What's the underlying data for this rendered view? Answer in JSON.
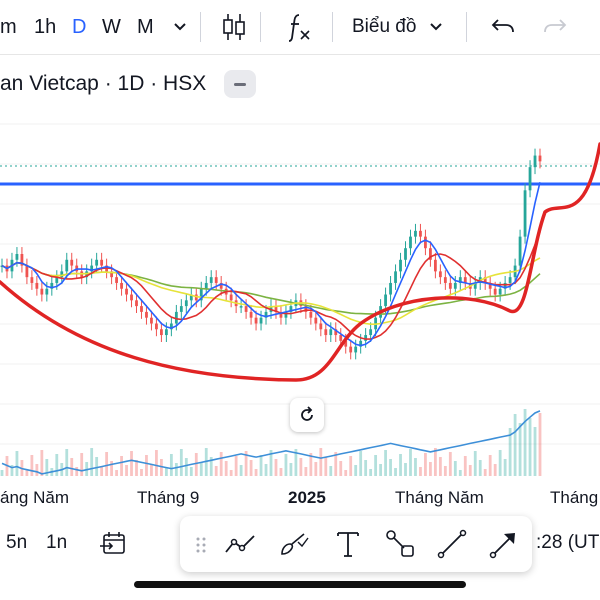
{
  "toolbar": {
    "intervals": [
      "m",
      "1h",
      "D",
      "W",
      "M"
    ],
    "active_interval": "D",
    "chevron_icon": "chevron-down-icon",
    "candles_icon": "candlestick-icon",
    "indicators_icon": "fx-icon",
    "chart_menu_label": "Biểu đồ",
    "undo_icon": "undo-icon",
    "redo_icon": "redo-icon"
  },
  "legend": {
    "symbol_text": "an Vietcap · 1D · HSX"
  },
  "colors": {
    "up": "#26a69a",
    "down": "#ef5350",
    "hline": "#2962ff",
    "ma_blue": "#2962ff",
    "ma_red": "#e03030",
    "ma_yellow": "#e6e33a",
    "ma_green": "#7cb342",
    "curve": "#e02424",
    "volume_line": "#3d8fd8",
    "dotted": "#26a69a",
    "active": "#2962ff"
  },
  "time_axis": [
    "áng Năm",
    "Tháng 9",
    "2025",
    "Tháng Năm",
    "Tháng"
  ],
  "bottom": {
    "ranges": [
      "5n",
      "1n"
    ],
    "time_text": ":28 (UT"
  },
  "chart_data": {
    "type": "candlestick",
    "title": "",
    "x_ticks": [
      "Tháng Năm",
      "Tháng 9",
      "2025",
      "Tháng Năm",
      "Tháng"
    ],
    "close": [
      45,
      44,
      46,
      47,
      45,
      43,
      42,
      41,
      40,
      41,
      42,
      43,
      44,
      46,
      45,
      44,
      43,
      44,
      45,
      46,
      45,
      44,
      43,
      42,
      41,
      40,
      39,
      38,
      37,
      36,
      35,
      34,
      33,
      34,
      35,
      37,
      38,
      39,
      40,
      39,
      41,
      42,
      43,
      42,
      41,
      40,
      39,
      38,
      38,
      37,
      36,
      35,
      36,
      37,
      38,
      37,
      36,
      37,
      38,
      39,
      38,
      37,
      36,
      35,
      34,
      33,
      34,
      33,
      32,
      31,
      30,
      31,
      32,
      33,
      34,
      36,
      38,
      40,
      42,
      44,
      46,
      48,
      50,
      51,
      50,
      48,
      46,
      44,
      43,
      42,
      41,
      42,
      43,
      42,
      41,
      42,
      43,
      42,
      41,
      40,
      41,
      42,
      43,
      45,
      50,
      58,
      62,
      64,
      63
    ],
    "volume_line": [
      40,
      38,
      36,
      37,
      35,
      34,
      33,
      32,
      30,
      31,
      32,
      33,
      34,
      36,
      35,
      34,
      33,
      34,
      35,
      36,
      37,
      38,
      39,
      40,
      41,
      42,
      43,
      42,
      41,
      40,
      39,
      38,
      37,
      36,
      35,
      36,
      37,
      38,
      39,
      40,
      41,
      42,
      43,
      44,
      45,
      46,
      47,
      48,
      49,
      48,
      47,
      46,
      47,
      48,
      49,
      50,
      51,
      52,
      51,
      50,
      49,
      48,
      47,
      46,
      45,
      46,
      47,
      48,
      49,
      50,
      51,
      52,
      53,
      54,
      55,
      56,
      57,
      58,
      59,
      58,
      57,
      56,
      55,
      54,
      53,
      52,
      51,
      52,
      53,
      54,
      55,
      56,
      57,
      58,
      59,
      60,
      61,
      62,
      63,
      64,
      65,
      66,
      67,
      70,
      75,
      80,
      84,
      88,
      90
    ]
  }
}
